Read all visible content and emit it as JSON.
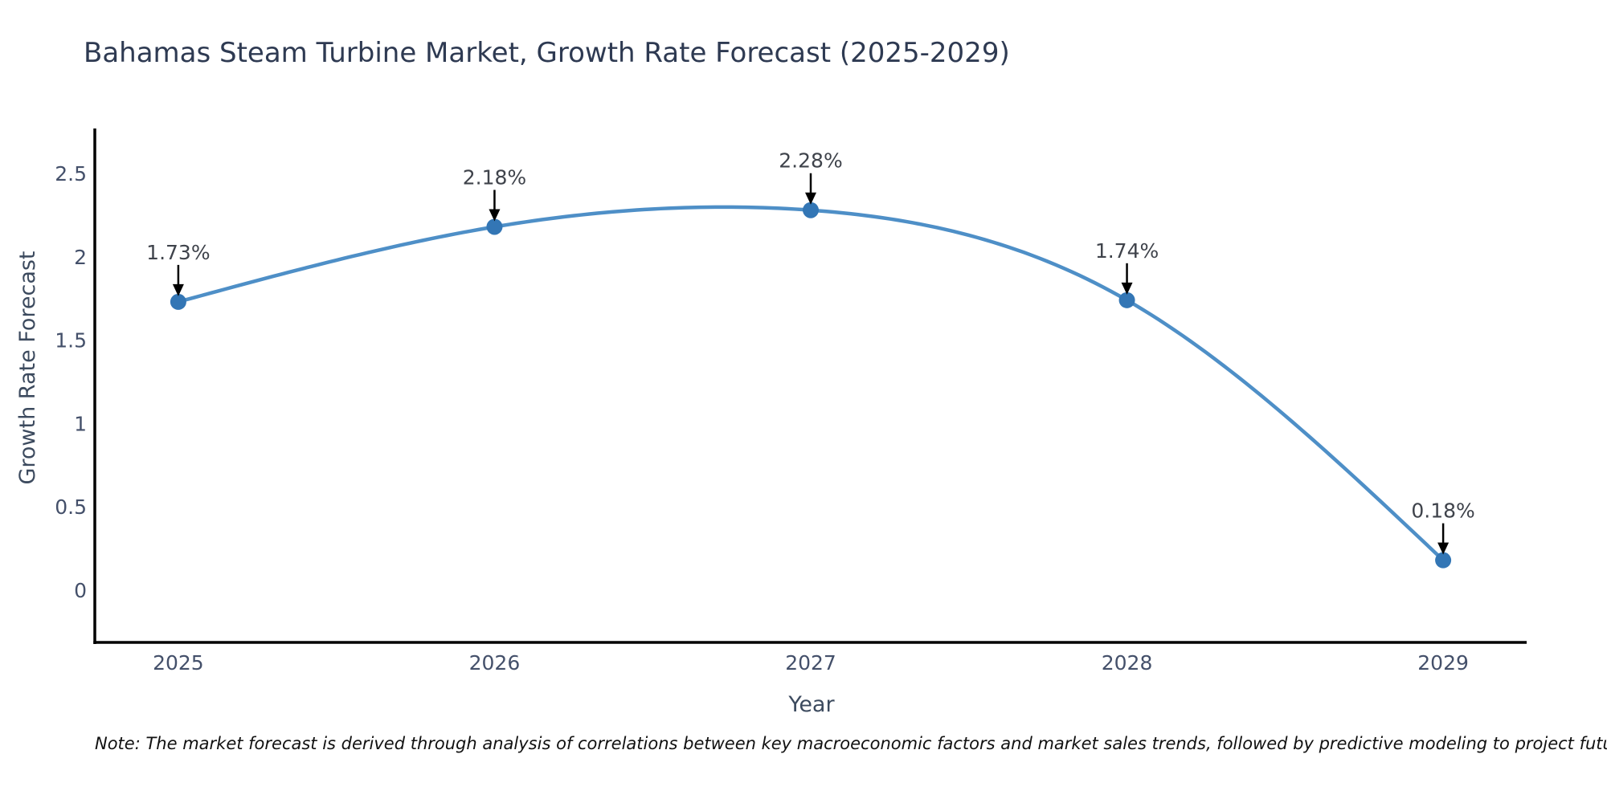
{
  "title": "Bahamas Steam Turbine Market, Growth Rate Forecast (2025-2029)",
  "note": "Note: The market forecast is derived through analysis of correlations between key macroeconomic factors and market sales trends, followed by predictive modeling to project future sales",
  "chart_data": {
    "type": "line",
    "title": "Bahamas Steam Turbine Market, Growth Rate Forecast (2025-2029)",
    "xlabel": "Year",
    "ylabel": "Growth Rate Forecast",
    "x": [
      2025,
      2026,
      2027,
      2028,
      2029
    ],
    "y": [
      1.73,
      2.18,
      2.28,
      1.74,
      0.18
    ],
    "point_labels": [
      "1.73%",
      "2.18%",
      "2.28%",
      "1.74%",
      "0.18%"
    ],
    "x_tick_labels": [
      "2025",
      "2026",
      "2027",
      "2028",
      "2029"
    ],
    "y_ticks": [
      0,
      0.5,
      1,
      1.5,
      2,
      2.5
    ],
    "y_tick_labels": [
      "0",
      "0.5",
      "1",
      "1.5",
      "2",
      "2.5"
    ],
    "xlim": [
      2024.736,
      2029.264
    ],
    "ylim": [
      -0.313,
      2.77
    ],
    "grid": false,
    "legend_position": "none",
    "smooth": true,
    "colors": {
      "line": "#4e8fc7",
      "marker": "#3376b5",
      "arrow": "#000000",
      "annotation_text": "#3f434b",
      "spine": "#000000",
      "tick_label": "#44506a"
    }
  }
}
